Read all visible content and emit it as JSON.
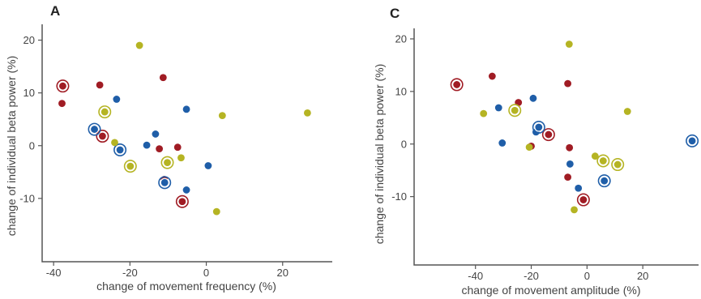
{
  "colors": {
    "red": "#a01c24",
    "blue": "#1f5ea8",
    "olive": "#b5b423"
  },
  "chart_data": [
    {
      "type": "scatter",
      "panel_label": "A",
      "xlabel": "change of movement frequency (%)",
      "ylabel": "change of individual beta power (%)",
      "xlim": [
        -43,
        33
      ],
      "ylim": [
        -22,
        23
      ],
      "xticks": [
        -40,
        -20,
        0,
        20
      ],
      "yticks": [
        20,
        10,
        0,
        -10
      ],
      "points": [
        {
          "x": -37.6,
          "y": 11.3,
          "color": "red",
          "ring": true
        },
        {
          "x": -37.8,
          "y": 8.0,
          "color": "red",
          "ring": false
        },
        {
          "x": -27.9,
          "y": 11.5,
          "color": "red",
          "ring": false
        },
        {
          "x": -27.2,
          "y": 1.8,
          "color": "red",
          "ring": true
        },
        {
          "x": -11.3,
          "y": 12.9,
          "color": "red",
          "ring": false
        },
        {
          "x": -12.3,
          "y": -0.6,
          "color": "red",
          "ring": false
        },
        {
          "x": -11.0,
          "y": -6.4,
          "color": "red",
          "ring": false
        },
        {
          "x": -7.5,
          "y": -0.3,
          "color": "red",
          "ring": false
        },
        {
          "x": -6.3,
          "y": -10.6,
          "color": "red",
          "ring": true
        },
        {
          "x": -23.5,
          "y": 8.8,
          "color": "blue",
          "ring": false
        },
        {
          "x": -29.3,
          "y": 3.1,
          "color": "blue",
          "ring": true
        },
        {
          "x": -22.6,
          "y": -0.8,
          "color": "blue",
          "ring": true
        },
        {
          "x": -13.3,
          "y": 2.2,
          "color": "blue",
          "ring": false
        },
        {
          "x": -15.6,
          "y": 0.1,
          "color": "blue",
          "ring": false
        },
        {
          "x": -10.9,
          "y": -7.0,
          "color": "blue",
          "ring": true
        },
        {
          "x": -5.2,
          "y": 6.9,
          "color": "blue",
          "ring": false
        },
        {
          "x": -5.2,
          "y": -8.4,
          "color": "blue",
          "ring": false
        },
        {
          "x": 0.5,
          "y": -3.8,
          "color": "blue",
          "ring": false
        },
        {
          "x": -17.5,
          "y": 19.0,
          "color": "olive",
          "ring": false
        },
        {
          "x": -26.6,
          "y": 6.4,
          "color": "olive",
          "ring": true
        },
        {
          "x": -24.0,
          "y": 0.6,
          "color": "olive",
          "ring": false
        },
        {
          "x": -19.9,
          "y": -3.9,
          "color": "olive",
          "ring": true
        },
        {
          "x": -10.2,
          "y": -3.2,
          "color": "olive",
          "ring": true
        },
        {
          "x": -6.6,
          "y": -2.3,
          "color": "olive",
          "ring": false
        },
        {
          "x": 4.2,
          "y": 5.7,
          "color": "olive",
          "ring": false
        },
        {
          "x": 2.7,
          "y": -12.5,
          "color": "olive",
          "ring": false
        },
        {
          "x": 26.5,
          "y": 6.2,
          "color": "olive",
          "ring": false
        }
      ]
    },
    {
      "type": "scatter",
      "panel_label": "C",
      "xlabel": "change of movement amplitude (%)",
      "ylabel": "change of individual beta power (%)",
      "xlim": [
        -62,
        40
      ],
      "ylim": [
        -23,
        22
      ],
      "xticks": [
        -40,
        -20,
        0,
        20
      ],
      "yticks": [
        20,
        10,
        0,
        -10
      ],
      "points": [
        {
          "x": -46.7,
          "y": 11.3,
          "color": "red",
          "ring": true
        },
        {
          "x": -34.0,
          "y": 12.9,
          "color": "red",
          "ring": false
        },
        {
          "x": -24.6,
          "y": 7.9,
          "color": "red",
          "ring": false
        },
        {
          "x": -20.0,
          "y": -0.4,
          "color": "red",
          "ring": false
        },
        {
          "x": -13.8,
          "y": 1.8,
          "color": "red",
          "ring": true
        },
        {
          "x": -6.9,
          "y": 11.5,
          "color": "red",
          "ring": false
        },
        {
          "x": -6.3,
          "y": -0.7,
          "color": "red",
          "ring": false
        },
        {
          "x": -6.9,
          "y": -6.3,
          "color": "red",
          "ring": false
        },
        {
          "x": -1.3,
          "y": -10.6,
          "color": "red",
          "ring": true
        },
        {
          "x": -31.7,
          "y": 6.9,
          "color": "blue",
          "ring": false
        },
        {
          "x": -30.4,
          "y": 0.2,
          "color": "blue",
          "ring": false
        },
        {
          "x": -19.3,
          "y": 8.7,
          "color": "blue",
          "ring": false
        },
        {
          "x": -18.3,
          "y": 2.3,
          "color": "blue",
          "ring": false
        },
        {
          "x": -17.3,
          "y": 3.2,
          "color": "blue",
          "ring": true
        },
        {
          "x": -6.1,
          "y": -3.8,
          "color": "blue",
          "ring": false
        },
        {
          "x": -3.1,
          "y": -8.4,
          "color": "blue",
          "ring": false
        },
        {
          "x": 6.2,
          "y": -7.0,
          "color": "blue",
          "ring": true
        },
        {
          "x": 37.7,
          "y": 0.6,
          "color": "blue",
          "ring": true
        },
        {
          "x": -37.1,
          "y": 5.8,
          "color": "olive",
          "ring": false
        },
        {
          "x": -25.9,
          "y": 6.4,
          "color": "olive",
          "ring": true
        },
        {
          "x": -20.7,
          "y": -0.6,
          "color": "olive",
          "ring": false
        },
        {
          "x": -6.4,
          "y": 19.0,
          "color": "olive",
          "ring": false
        },
        {
          "x": -4.6,
          "y": -12.5,
          "color": "olive",
          "ring": false
        },
        {
          "x": 2.9,
          "y": -2.3,
          "color": "olive",
          "ring": false
        },
        {
          "x": 5.8,
          "y": -3.2,
          "color": "olive",
          "ring": true
        },
        {
          "x": 11.0,
          "y": -3.9,
          "color": "olive",
          "ring": true
        },
        {
          "x": 14.5,
          "y": 6.2,
          "color": "olive",
          "ring": false
        }
      ]
    }
  ]
}
